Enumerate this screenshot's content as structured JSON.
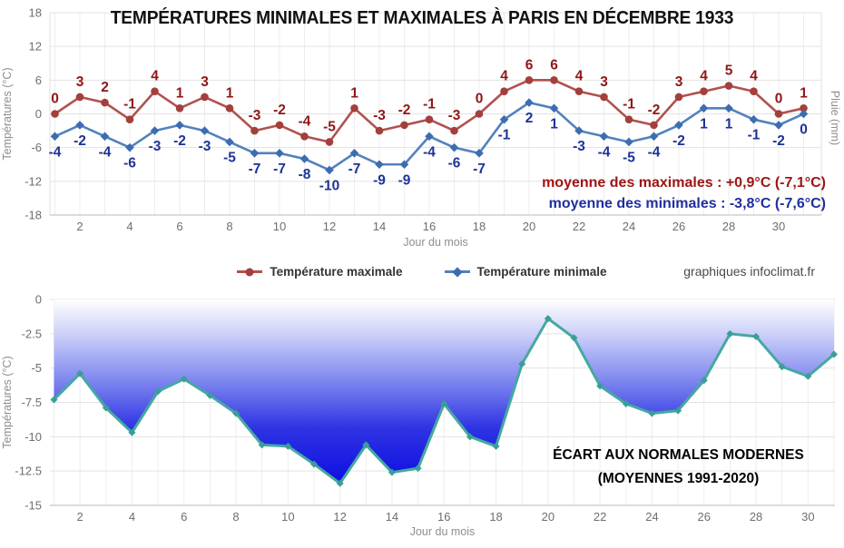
{
  "chart_data": [
    {
      "type": "line",
      "title": "TEMPÉRATURES MINIMALES ET MAXIMALES À PARIS EN DÉCEMBRE 1933",
      "xlabel": "Jour du mois",
      "ylabel": "Températures (°C)",
      "ylabel_right": "Pluie (mm)",
      "ylim": [
        -18,
        18
      ],
      "yticks": [
        "18",
        "12",
        "6",
        "0",
        "-6",
        "-12",
        "-18"
      ],
      "xticks": [
        "2",
        "4",
        "6",
        "8",
        "10",
        "12",
        "14",
        "16",
        "18",
        "20",
        "22",
        "24",
        "26",
        "28",
        "30"
      ],
      "x": [
        1,
        2,
        3,
        4,
        5,
        6,
        7,
        8,
        9,
        10,
        11,
        12,
        13,
        14,
        15,
        16,
        17,
        18,
        19,
        20,
        21,
        22,
        23,
        24,
        25,
        26,
        27,
        28,
        29,
        30,
        31
      ],
      "grid": true,
      "legend_position": "bottom",
      "series": [
        {
          "name": "Température maximale",
          "marker": "circle",
          "line_color": "#b0524e",
          "marker_color": "#a33f3c",
          "label_color": "#8f1616",
          "values": [
            0,
            3,
            2,
            -1,
            4,
            1,
            3,
            1,
            -3,
            -2,
            -4,
            -5,
            1,
            -3,
            -2,
            -1,
            -3,
            0,
            4,
            6,
            6,
            4,
            3,
            -1,
            -2,
            3,
            4,
            5,
            4,
            0,
            1
          ]
        },
        {
          "name": "Température minimale",
          "marker": "diamond",
          "line_color": "#5282bd",
          "marker_color": "#3d6db0",
          "label_color": "#1e3296",
          "values": [
            -4,
            -2,
            -4,
            -6,
            -3,
            -2,
            -3,
            -5,
            -7,
            -7,
            -8,
            -10,
            -7,
            -9,
            -9,
            -4,
            -6,
            -7,
            -1,
            2,
            1,
            -3,
            -4,
            -5,
            -4,
            -2,
            1,
            1,
            -1,
            -2,
            0
          ]
        }
      ],
      "annotations": [
        {
          "text": "moyenne des maximales : +0,9°C (-7,1°C)",
          "color": "#9e1414"
        },
        {
          "text": "moyenne des minimales : -3,8°C (-7,6°C)",
          "color": "#1e2f9e"
        }
      ],
      "watermark": "graphiques infoclimat.fr"
    },
    {
      "type": "area",
      "xlabel": "Jour du mois",
      "ylabel": "Températures (°C)",
      "ylim": [
        -15,
        0
      ],
      "yticks": [
        "0",
        "-2.5",
        "-5",
        "-7.5",
        "-10",
        "-12.5",
        "-15"
      ],
      "xticks": [
        "2",
        "4",
        "6",
        "8",
        "10",
        "12",
        "14",
        "16",
        "18",
        "20",
        "22",
        "24",
        "26",
        "28",
        "30"
      ],
      "x": [
        1,
        2,
        3,
        4,
        5,
        6,
        7,
        8,
        9,
        10,
        11,
        12,
        13,
        14,
        15,
        16,
        17,
        18,
        19,
        20,
        21,
        22,
        23,
        24,
        25,
        26,
        27,
        28,
        29,
        30,
        31
      ],
      "grid": true,
      "line_color": "#45a8a1",
      "marker_color": "#3a9e98",
      "fill_gradient": [
        "#ffffff",
        "#c9cdf8",
        "#7b84ee",
        "#2e33e3",
        "#0e0ee1"
      ],
      "values": [
        -7.3,
        -5.4,
        -7.9,
        -9.7,
        -6.7,
        -5.8,
        -7.0,
        -8.3,
        -10.6,
        -10.7,
        -12.0,
        -13.4,
        -10.6,
        -12.6,
        -12.3,
        -7.6,
        -10.0,
        -10.7,
        -4.7,
        -1.4,
        -2.8,
        -6.3,
        -7.6,
        -8.3,
        -8.1,
        -5.9,
        -2.5,
        -2.7,
        -4.9,
        -5.6,
        -4.0
      ],
      "annotation": {
        "line1": "ÉCART AUX NORMALES MODERNES",
        "line2": "(MOYENNES 1991-2020)",
        "color": "#000000"
      }
    }
  ]
}
